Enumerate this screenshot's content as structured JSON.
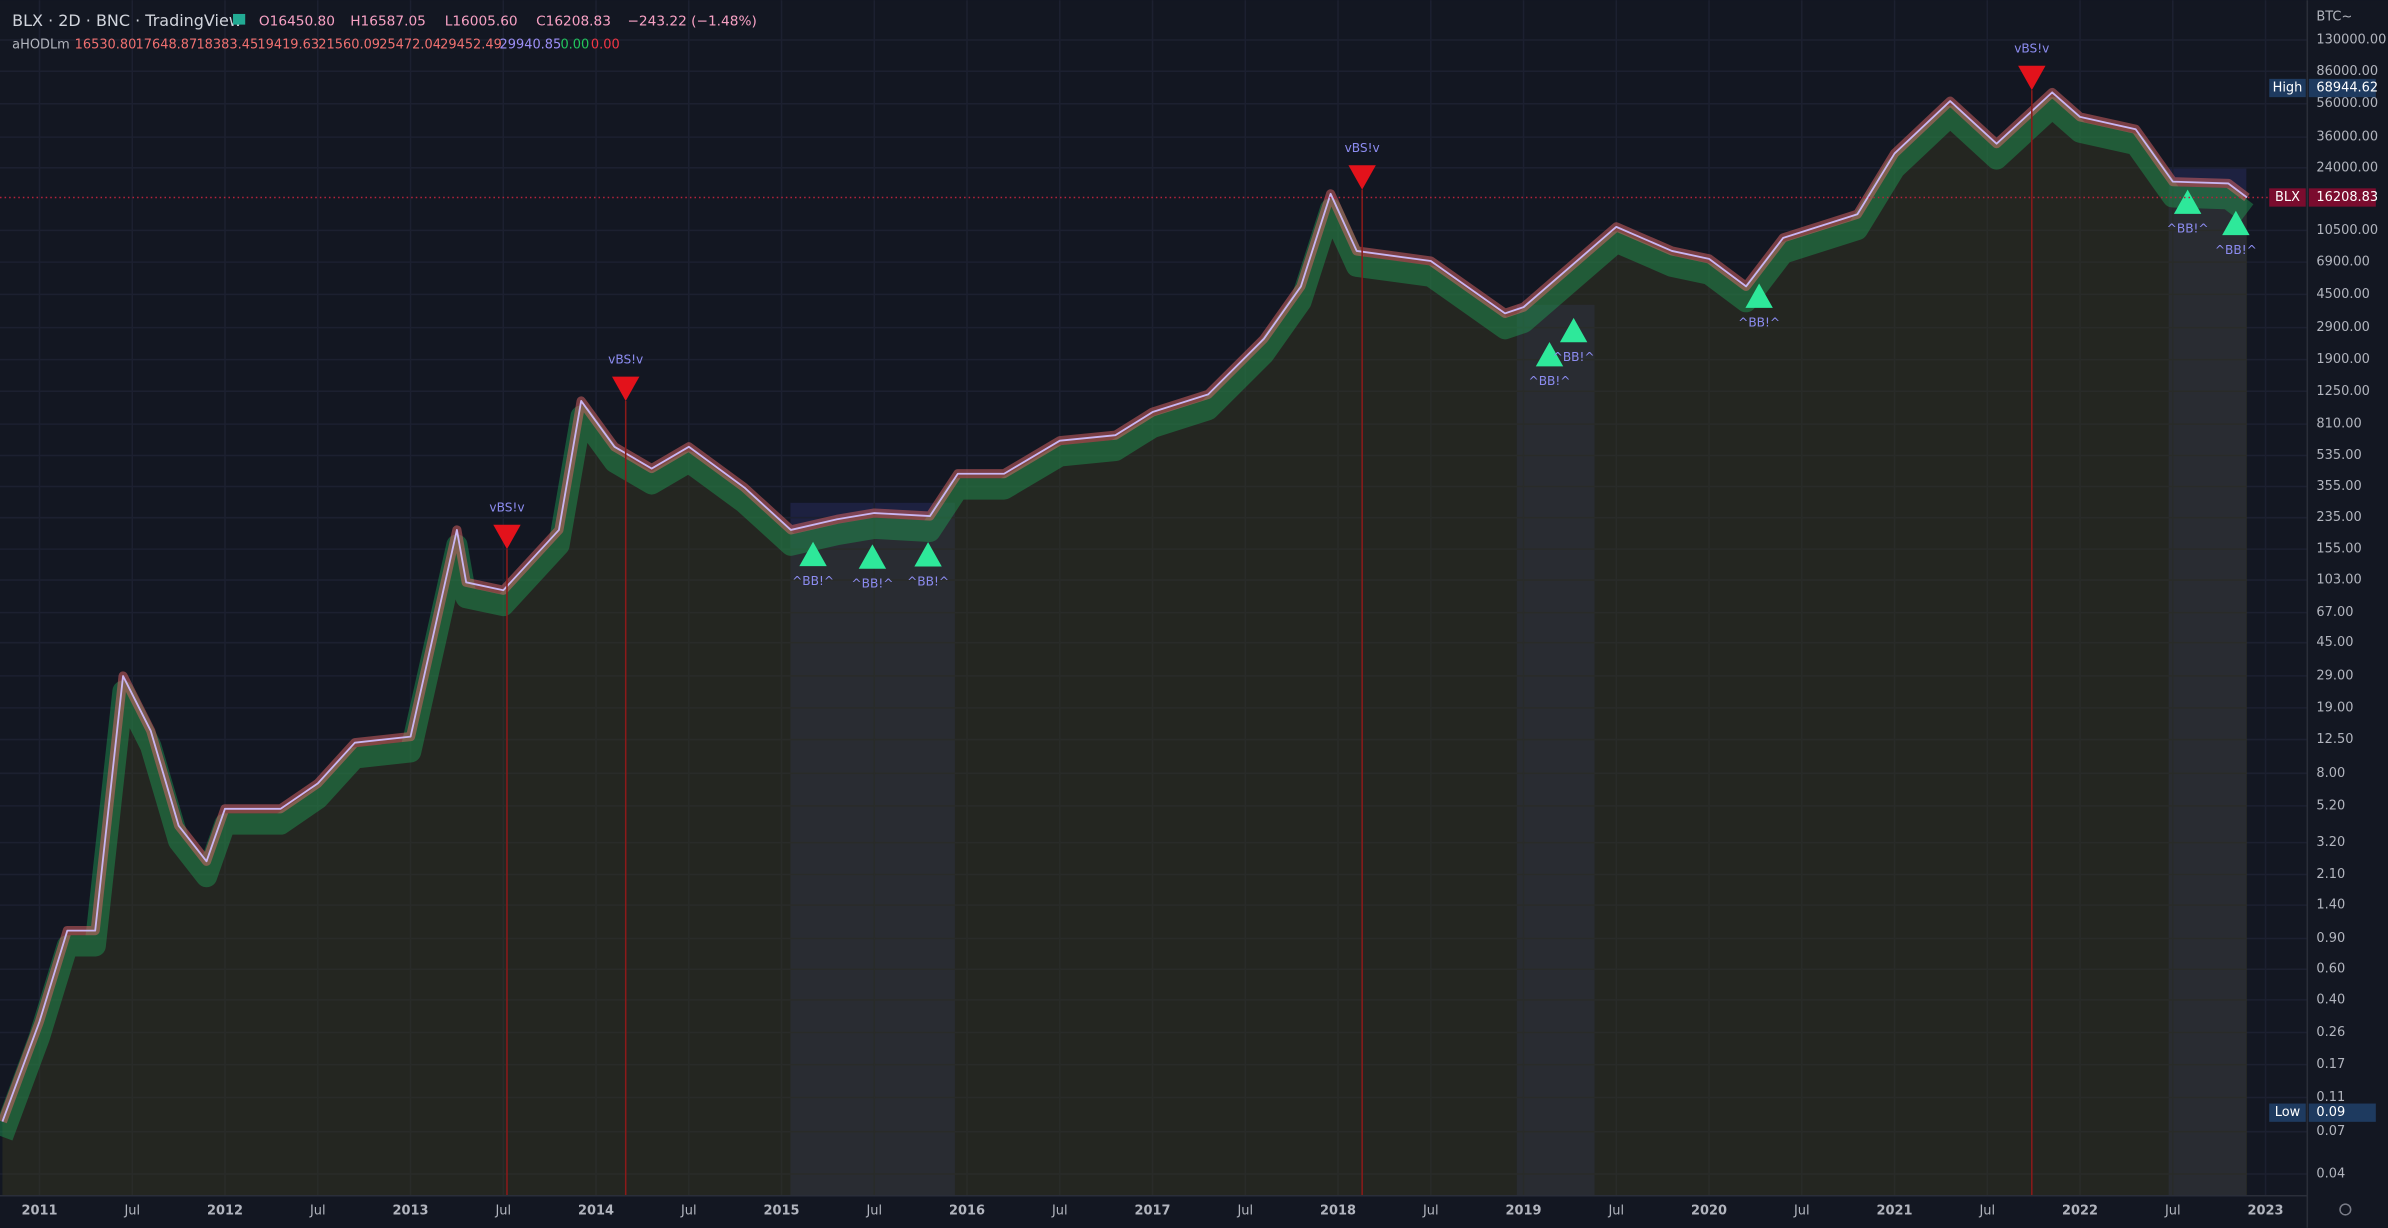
{
  "header": {
    "symbol": "BLX · 2D · BNC · TradingView",
    "ohlc": [
      "O16450.80",
      "H16587.05",
      "L16005.60",
      "C16208.83"
    ],
    "change": "−243.22 (−1.48%)"
  },
  "indicator": {
    "name": "aHODLm",
    "values": [
      "16530.80",
      "17648.87",
      "18383.45",
      "19419.63",
      "21560.09",
      "25472.04",
      "29452.49",
      "29940.85",
      "0.00",
      "0.00"
    ]
  },
  "currency": "BTC~",
  "chart_data": {
    "type": "line",
    "log_scale": true,
    "grid": true,
    "xlim": [
      2010.787,
      2023.225
    ],
    "ylim": [
      0.03,
      220000
    ],
    "xticks": [
      {
        "value": 2011,
        "label": "2011"
      },
      {
        "value": 2011.5,
        "label": "Jul"
      },
      {
        "value": 2012,
        "label": "2012"
      },
      {
        "value": 2012.5,
        "label": "Jul"
      },
      {
        "value": 2013,
        "label": "2013"
      },
      {
        "value": 2013.5,
        "label": "Jul"
      },
      {
        "value": 2014,
        "label": "2014"
      },
      {
        "value": 2014.5,
        "label": "Jul"
      },
      {
        "value": 2015,
        "label": "2015"
      },
      {
        "value": 2015.5,
        "label": "Jul"
      },
      {
        "value": 2016,
        "label": "2016"
      },
      {
        "value": 2016.5,
        "label": "Jul"
      },
      {
        "value": 2017,
        "label": "2017"
      },
      {
        "value": 2017.5,
        "label": "Jul"
      },
      {
        "value": 2018,
        "label": "2018"
      },
      {
        "value": 2018.5,
        "label": "Jul"
      },
      {
        "value": 2019,
        "label": "2019"
      },
      {
        "value": 2019.5,
        "label": "Jul"
      },
      {
        "value": 2020,
        "label": "2020"
      },
      {
        "value": 2020.5,
        "label": "Jul"
      },
      {
        "value": 2021,
        "label": "2021"
      },
      {
        "value": 2021.5,
        "label": "Jul"
      },
      {
        "value": 2022,
        "label": "2022"
      },
      {
        "value": 2022.5,
        "label": "Jul"
      },
      {
        "value": 2023,
        "label": "2023"
      }
    ],
    "yticks": [
      {
        "value": 130000,
        "label": "130000.00"
      },
      {
        "value": 86000,
        "label": "86000.00"
      },
      {
        "value": 56000,
        "label": "56000.00"
      },
      {
        "value": 36000,
        "label": "36000.00"
      },
      {
        "value": 24000,
        "label": "24000.00"
      },
      {
        "value": 10500,
        "label": "10500.00"
      },
      {
        "value": 6900,
        "label": "6900.00"
      },
      {
        "value": 4500,
        "label": "4500.00"
      },
      {
        "value": 2900,
        "label": "2900.00"
      },
      {
        "value": 1900,
        "label": "1900.00"
      },
      {
        "value": 1250,
        "label": "1250.00"
      },
      {
        "value": 810,
        "label": "810.00"
      },
      {
        "value": 535,
        "label": "535.00"
      },
      {
        "value": 355,
        "label": "355.00"
      },
      {
        "value": 235,
        "label": "235.00"
      },
      {
        "value": 155,
        "label": "155.00"
      },
      {
        "value": 103,
        "label": "103.00"
      },
      {
        "value": 67,
        "label": "67.00"
      },
      {
        "value": 45,
        "label": "45.00"
      },
      {
        "value": 29,
        "label": "29.00"
      },
      {
        "value": 19,
        "label": "19.00"
      },
      {
        "value": 12.5,
        "label": "12.50"
      },
      {
        "value": 8,
        "label": "8.00"
      },
      {
        "value": 5.2,
        "label": "5.20"
      },
      {
        "value": 3.2,
        "label": "3.20"
      },
      {
        "value": 2.1,
        "label": "2.10"
      },
      {
        "value": 1.4,
        "label": "1.40"
      },
      {
        "value": 0.9,
        "label": "0.90"
      },
      {
        "value": 0.6,
        "label": "0.60"
      },
      {
        "value": 0.4,
        "label": "0.40"
      },
      {
        "value": 0.26,
        "label": "0.26"
      },
      {
        "value": 0.17,
        "label": "0.17"
      },
      {
        "value": 0.11,
        "label": "0.11"
      },
      {
        "value": 0.07,
        "label": "0.07"
      },
      {
        "value": 0.04,
        "label": "0.04"
      }
    ],
    "x": [
      2010.8,
      2011.0,
      2011.15,
      2011.3,
      2011.45,
      2011.6,
      2011.75,
      2011.9,
      2012.0,
      2012.3,
      2012.5,
      2012.7,
      2013.0,
      2013.25,
      2013.3,
      2013.5,
      2013.8,
      2013.92,
      2014.1,
      2014.3,
      2014.5,
      2014.8,
      2015.05,
      2015.3,
      2015.5,
      2015.8,
      2015.95,
      2016.2,
      2016.5,
      2016.8,
      2017.0,
      2017.3,
      2017.6,
      2017.8,
      2017.96,
      2018.1,
      2018.5,
      2018.9,
      2019.0,
      2019.5,
      2019.8,
      2020.0,
      2020.2,
      2020.4,
      2020.8,
      2021.0,
      2021.3,
      2021.55,
      2021.85,
      2022.0,
      2022.3,
      2022.5,
      2022.8,
      2022.9
    ],
    "series": [
      {
        "color": "#c9b6f2",
        "values": [
          0.08,
          0.3,
          1.0,
          1.0,
          29,
          14,
          4,
          2.5,
          5,
          5,
          7,
          12,
          13,
          200,
          100,
          90,
          200,
          1100,
          600,
          450,
          600,
          350,
          200,
          230,
          250,
          240,
          420,
          420,
          650,
          700,
          950,
          1200,
          2500,
          5000,
          17000,
          8000,
          7000,
          3500,
          3800,
          11000,
          8000,
          7200,
          5000,
          9500,
          13000,
          29000,
          58000,
          33000,
          65000,
          47000,
          40000,
          20000,
          19500,
          16200
        ]
      }
    ],
    "sell_signals": [
      {
        "label": "vBS!v",
        "x": 2013.52,
        "value": 155
      },
      {
        "label": "vBS!v",
        "x": 2014.16,
        "value": 1100
      },
      {
        "label": "vBS!v",
        "x": 2018.13,
        "value": 18000
      },
      {
        "label": "vBS!v",
        "x": 2021.74,
        "value": 67000
      }
    ],
    "buy_signals": [
      {
        "label": "^BB!^",
        "x": 2015.17,
        "value": 171
      },
      {
        "label": "^BB!^",
        "x": 2015.49,
        "value": 165
      },
      {
        "label": "^BB!^",
        "x": 2015.79,
        "value": 170
      },
      {
        "label": "^BB!^",
        "x": 2019.14,
        "value": 2400
      },
      {
        "label": "^BB!^",
        "x": 2019.27,
        "value": 3300
      },
      {
        "label": "^BB!^",
        "x": 2020.27,
        "value": 5200
      },
      {
        "label": "^BB!^",
        "x": 2022.58,
        "value": 18000
      },
      {
        "label": "^BB!^",
        "x": 2022.84,
        "value": 13600
      }
    ],
    "price_labels": [
      {
        "name": "High",
        "value": 68944.62
      },
      {
        "name": "BLX",
        "value": 16208.83
      },
      {
        "name": "Low",
        "value": 0.09
      }
    ]
  }
}
